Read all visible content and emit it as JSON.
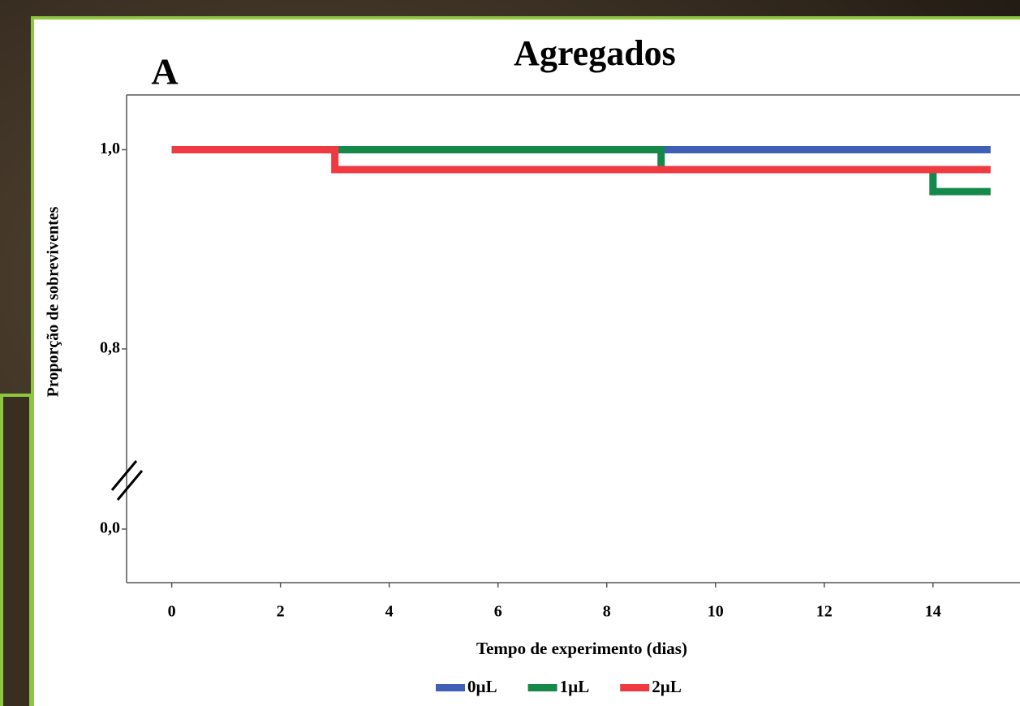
{
  "chart_data": {
    "type": "line",
    "step": "post",
    "title": "Agregados",
    "panel_label": "A",
    "x_label": "Tempo de experimento (dias)",
    "y_label": "Proporção de sobreviventes",
    "series": [
      {
        "name": "0µL",
        "color": "#4060b8",
        "x": [
          0,
          15
        ],
        "values": [
          1.0,
          1.0
        ]
      },
      {
        "name": "1µL",
        "color": "#15894a",
        "x": [
          0,
          9,
          14,
          15
        ],
        "values": [
          1.0,
          0.98,
          0.958,
          0.958
        ]
      },
      {
        "name": "2µL",
        "color": "#ee3a40",
        "x": [
          0,
          3,
          15
        ],
        "values": [
          1.0,
          0.98,
          0.98
        ]
      }
    ],
    "xlim": [
      -0.83,
      15.6
    ],
    "xticks": [
      0,
      2,
      4,
      6,
      8,
      10,
      12,
      14
    ],
    "ylim": [
      -0.238,
      1.055
    ],
    "y_break": 0.8,
    "yticks": [
      {
        "value": 0.0,
        "label": "0,0"
      },
      {
        "value": 0.8,
        "label": "0,8"
      },
      {
        "value": 1.0,
        "label": "1,0"
      }
    ],
    "legend": "bottom"
  }
}
